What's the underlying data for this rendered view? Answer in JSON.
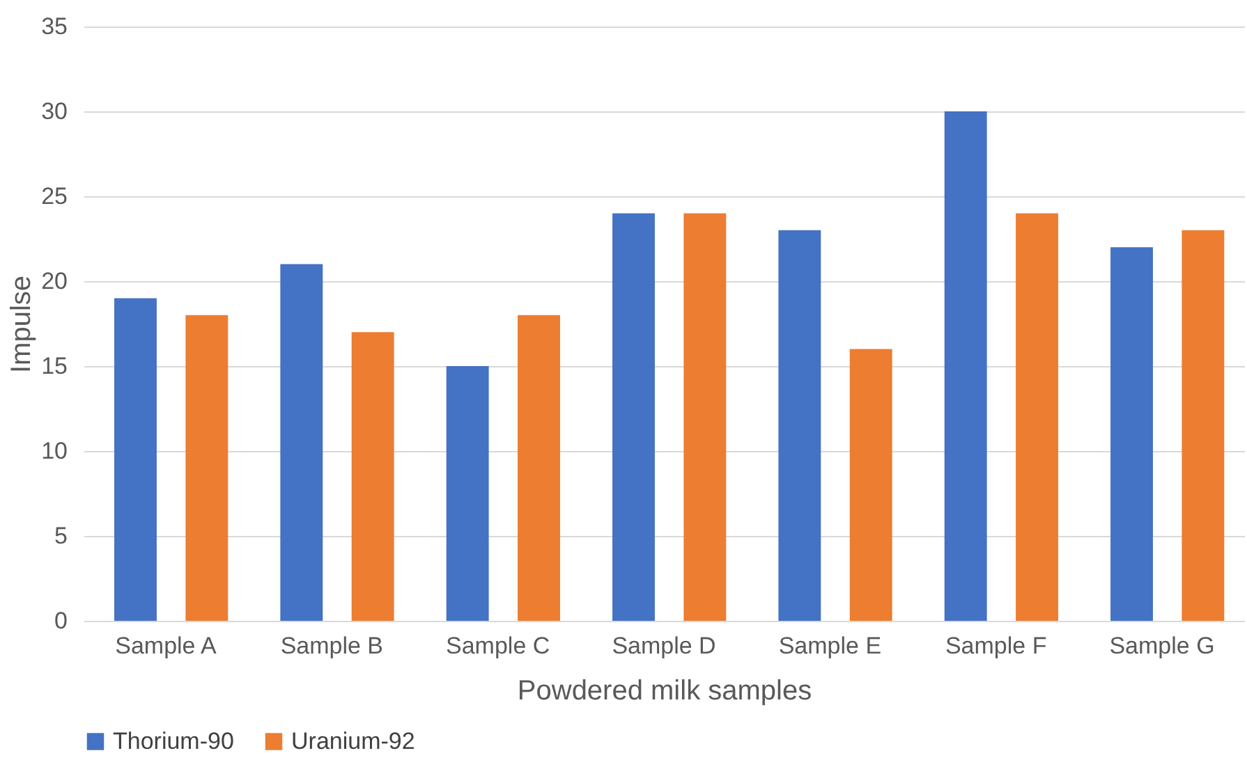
{
  "chart_data": {
    "type": "bar",
    "xlabel": "Powdered milk samples",
    "ylabel": "Impulse",
    "categories": [
      "Sample A",
      "Sample B",
      "Sample C",
      "Sample D",
      "Sample E",
      "Sample F",
      "Sample G"
    ],
    "series": [
      {
        "name": "Thorium-90",
        "color": "#4472c4",
        "values": [
          19,
          21,
          15,
          24,
          23,
          30,
          22
        ]
      },
      {
        "name": "Uranium-92",
        "color": "#ed7d31",
        "values": [
          18,
          17,
          18,
          24,
          16,
          24,
          23
        ]
      }
    ],
    "ylim": [
      0,
      35
    ],
    "yticks": [
      0,
      5,
      10,
      15,
      20,
      25,
      30,
      35
    ],
    "grid": "y",
    "legend": "bottom"
  }
}
